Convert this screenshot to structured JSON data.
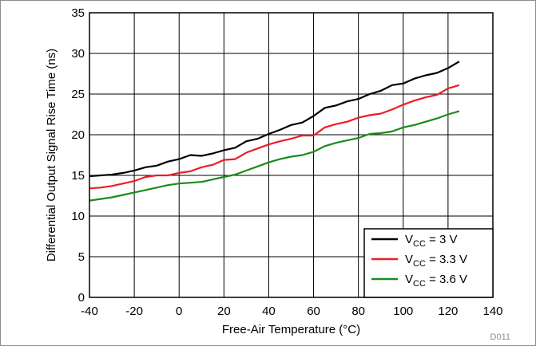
{
  "chart_data": {
    "type": "line",
    "title": "",
    "xlabel": "Free-Air Temperature (°C)",
    "ylabel": "Differential Output Signal Rise Time (ns)",
    "xlim": [
      -40,
      140
    ],
    "ylim": [
      0,
      35
    ],
    "x_ticks": [
      -40,
      -20,
      0,
      20,
      40,
      60,
      80,
      100,
      120,
      140
    ],
    "y_ticks": [
      0,
      5,
      10,
      15,
      20,
      25,
      30,
      35
    ],
    "grid": true,
    "legend_position": "bottom-right",
    "x": [
      -40,
      -35,
      -30,
      -25,
      -20,
      -15,
      -10,
      -5,
      0,
      5,
      10,
      15,
      20,
      25,
      30,
      35,
      40,
      45,
      50,
      55,
      60,
      65,
      70,
      75,
      80,
      85,
      90,
      95,
      100,
      105,
      110,
      115,
      120,
      125
    ],
    "series": [
      {
        "name_main": "V",
        "name_sub": "CC",
        "name_tail": " = 3 V",
        "color": "#000000",
        "values": [
          14.9,
          15.0,
          15.1,
          15.3,
          15.6,
          16.0,
          16.2,
          16.7,
          17.0,
          17.5,
          17.4,
          17.7,
          18.1,
          18.4,
          19.2,
          19.5,
          20.1,
          20.6,
          21.2,
          21.5,
          22.3,
          23.3,
          23.6,
          24.1,
          24.4,
          25.0,
          25.4,
          26.1,
          26.3,
          26.9,
          27.3,
          27.6,
          28.2,
          29.0
        ]
      },
      {
        "name_main": "V",
        "name_sub": "CC",
        "name_tail": " = 3.3 V",
        "color": "#ee1c25",
        "values": [
          13.4,
          13.5,
          13.7,
          14.0,
          14.3,
          14.8,
          15.0,
          15.0,
          15.3,
          15.5,
          16.0,
          16.3,
          16.9,
          17.0,
          17.8,
          18.3,
          18.8,
          19.2,
          19.5,
          19.9,
          19.9,
          20.9,
          21.3,
          21.6,
          22.1,
          22.4,
          22.6,
          23.1,
          23.7,
          24.2,
          24.6,
          24.9,
          25.7,
          26.1
        ]
      },
      {
        "name_main": "V",
        "name_sub": "CC",
        "name_tail": " = 3.6 V",
        "color": "#1a8c1a",
        "values": [
          11.9,
          12.1,
          12.3,
          12.6,
          12.9,
          13.2,
          13.5,
          13.8,
          14.0,
          14.1,
          14.2,
          14.5,
          14.8,
          15.1,
          15.6,
          16.1,
          16.6,
          17.0,
          17.3,
          17.5,
          17.9,
          18.6,
          19.0,
          19.3,
          19.6,
          20.1,
          20.2,
          20.4,
          20.9,
          21.2,
          21.6,
          22.0,
          22.5,
          22.9
        ]
      }
    ],
    "figure_code": "D011"
  }
}
